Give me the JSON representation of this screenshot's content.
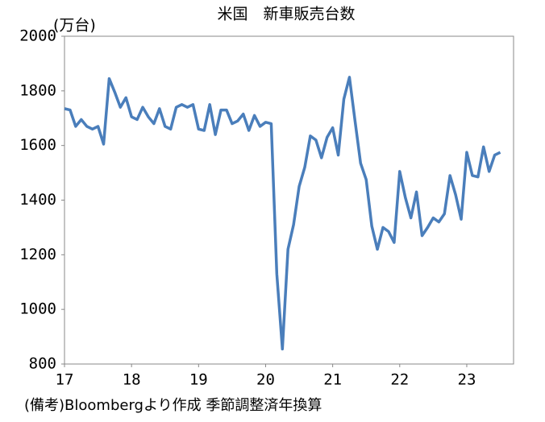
{
  "chart_data": {
    "type": "line",
    "title": "米国　新車販売台数",
    "y_label": "(万台)",
    "note": "(備考)Bloombergより作成 季節調整済年換算",
    "categories": [
      "17",
      null,
      null,
      null,
      null,
      null,
      null,
      null,
      null,
      null,
      null,
      null,
      "18",
      null,
      null,
      null,
      null,
      null,
      null,
      null,
      null,
      null,
      null,
      null,
      "19",
      null,
      null,
      null,
      null,
      null,
      null,
      null,
      null,
      null,
      null,
      null,
      "20",
      null,
      null,
      null,
      null,
      null,
      null,
      null,
      null,
      null,
      null,
      null,
      "21",
      null,
      null,
      null,
      null,
      null,
      null,
      null,
      null,
      null,
      null,
      null,
      "22",
      null,
      null,
      null,
      null,
      null,
      null,
      null,
      null,
      null,
      null,
      null,
      "23",
      null,
      null,
      null,
      null,
      null,
      null
    ],
    "series": [
      {
        "name": "新車販売台数",
        "color": "#4a7ebb",
        "values": [
          1735,
          1730,
          1670,
          1695,
          1670,
          1660,
          1670,
          1605,
          1845,
          1795,
          1740,
          1775,
          1705,
          1695,
          1740,
          1705,
          1680,
          1735,
          1670,
          1660,
          1740,
          1750,
          1740,
          1750,
          1660,
          1655,
          1750,
          1640,
          1730,
          1730,
          1680,
          1690,
          1715,
          1655,
          1710,
          1670,
          1685,
          1680,
          1130,
          855,
          1220,
          1310,
          1450,
          1520,
          1635,
          1620,
          1555,
          1630,
          1665,
          1565,
          1770,
          1850,
          1690,
          1535,
          1475,
          1305,
          1220,
          1300,
          1285,
          1245,
          1505,
          1410,
          1335,
          1430,
          1270,
          1300,
          1335,
          1320,
          1350,
          1490,
          1420,
          1330,
          1575,
          1490,
          1485,
          1595,
          1505,
          1565,
          1575
        ]
      }
    ],
    "ylim": [
      800,
      2000
    ],
    "yticks": [
      800,
      1000,
      1200,
      1400,
      1600,
      1800,
      2000
    ],
    "grid": false
  }
}
